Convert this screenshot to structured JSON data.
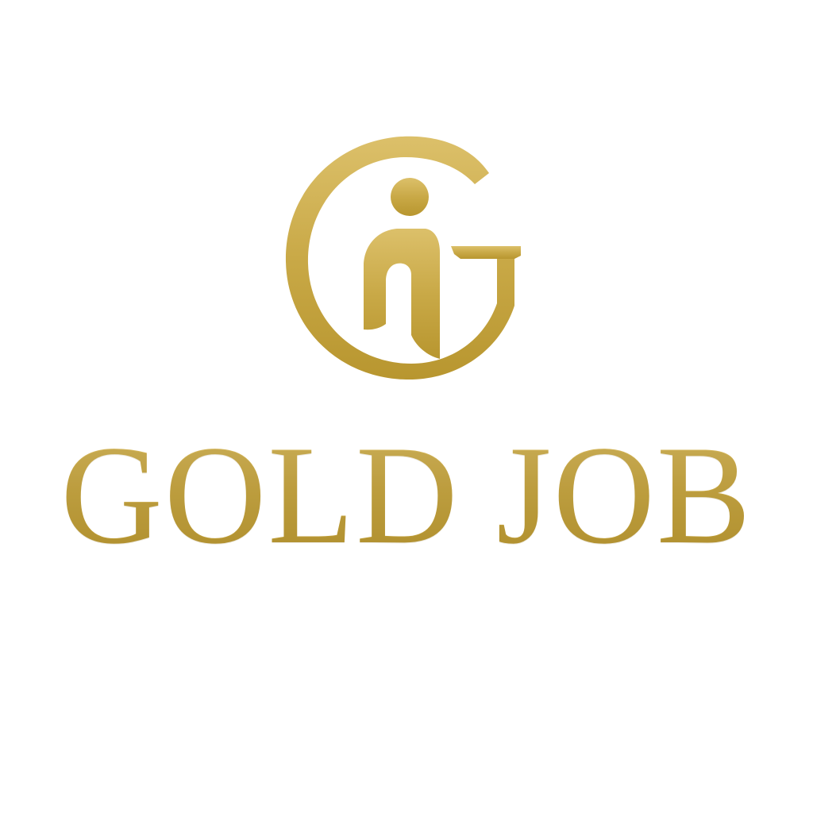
{
  "brand": {
    "name": "GOLD JOB"
  },
  "colors": {
    "background": "#ffffff",
    "gold": "#c9a947",
    "gold_light": "#dcc06a",
    "gold_dark": "#b8962f"
  },
  "logo": {
    "emblem_icon": "gj-person-monogram-icon"
  }
}
